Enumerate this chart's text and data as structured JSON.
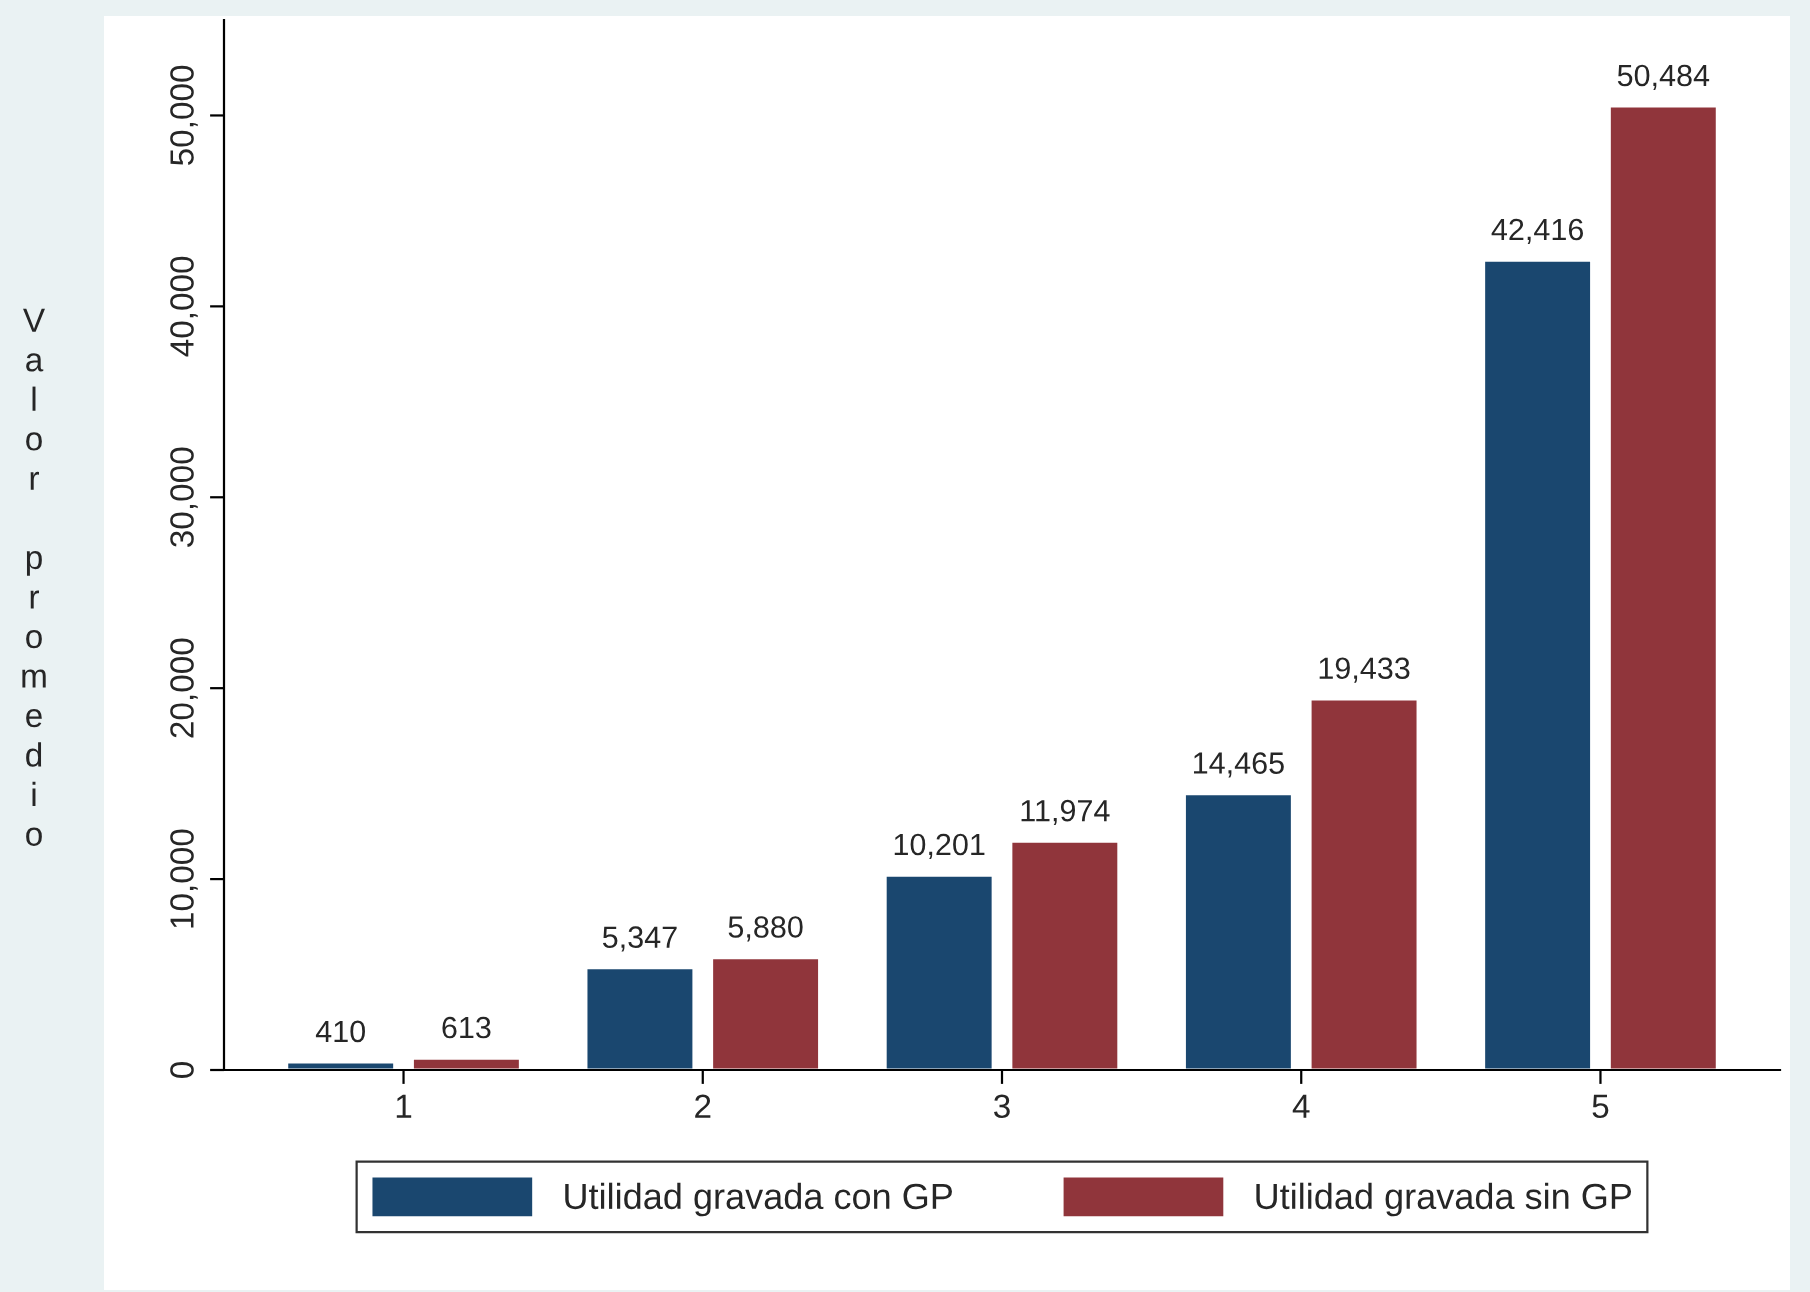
{
  "chart_data": {
    "type": "bar",
    "ylabel": "Valor promedio",
    "categories": [
      "1",
      "2",
      "3",
      "4",
      "5"
    ],
    "series": [
      {
        "name": "Utilidad gravada con GP",
        "color": "#1a476f",
        "values": [
          410,
          5347,
          10201,
          14465,
          42416
        ],
        "value_labels": [
          "410",
          "5,347",
          "10,201",
          "14,465",
          "42,416"
        ]
      },
      {
        "name": "Utilidad gravada sin GP",
        "color": "#90353b",
        "values": [
          613,
          5880,
          11974,
          19433,
          50484
        ],
        "value_labels": [
          "613",
          "5,880",
          "11,974",
          "19,433",
          "50,484"
        ]
      }
    ],
    "ylim": [
      0,
      55000
    ],
    "yticks": [
      {
        "value": 0,
        "label": "0"
      },
      {
        "value": 10000,
        "label": "10,000"
      },
      {
        "value": 20000,
        "label": "20,000"
      },
      {
        "value": 30000,
        "label": "30,000"
      },
      {
        "value": 40000,
        "label": "40,000"
      },
      {
        "value": 50000,
        "label": "50,000"
      }
    ],
    "grid": false,
    "legend": "bottom"
  }
}
